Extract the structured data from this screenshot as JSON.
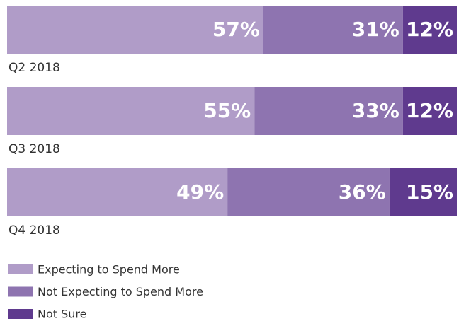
{
  "chart_data": {
    "type": "stacked_bar_h",
    "categories": [
      "Q2 2018",
      "Q3 2018",
      "Q4 2018"
    ],
    "series": [
      {
        "name": "Expecting to Spend More",
        "color": "#b09cc8",
        "values": [
          57,
          55,
          49
        ],
        "value_labels": [
          "57%",
          "55%",
          "49%"
        ]
      },
      {
        "name": "Not Expecting to Spend More",
        "color": "#8e74b0",
        "values": [
          31,
          33,
          36
        ],
        "value_labels": [
          "31%",
          "33%",
          "36%"
        ]
      },
      {
        "name": "Not Sure",
        "color": "#5f3a8e",
        "values": [
          12,
          12,
          15
        ],
        "value_labels": [
          "12%",
          "12%",
          "15%"
        ]
      }
    ]
  }
}
